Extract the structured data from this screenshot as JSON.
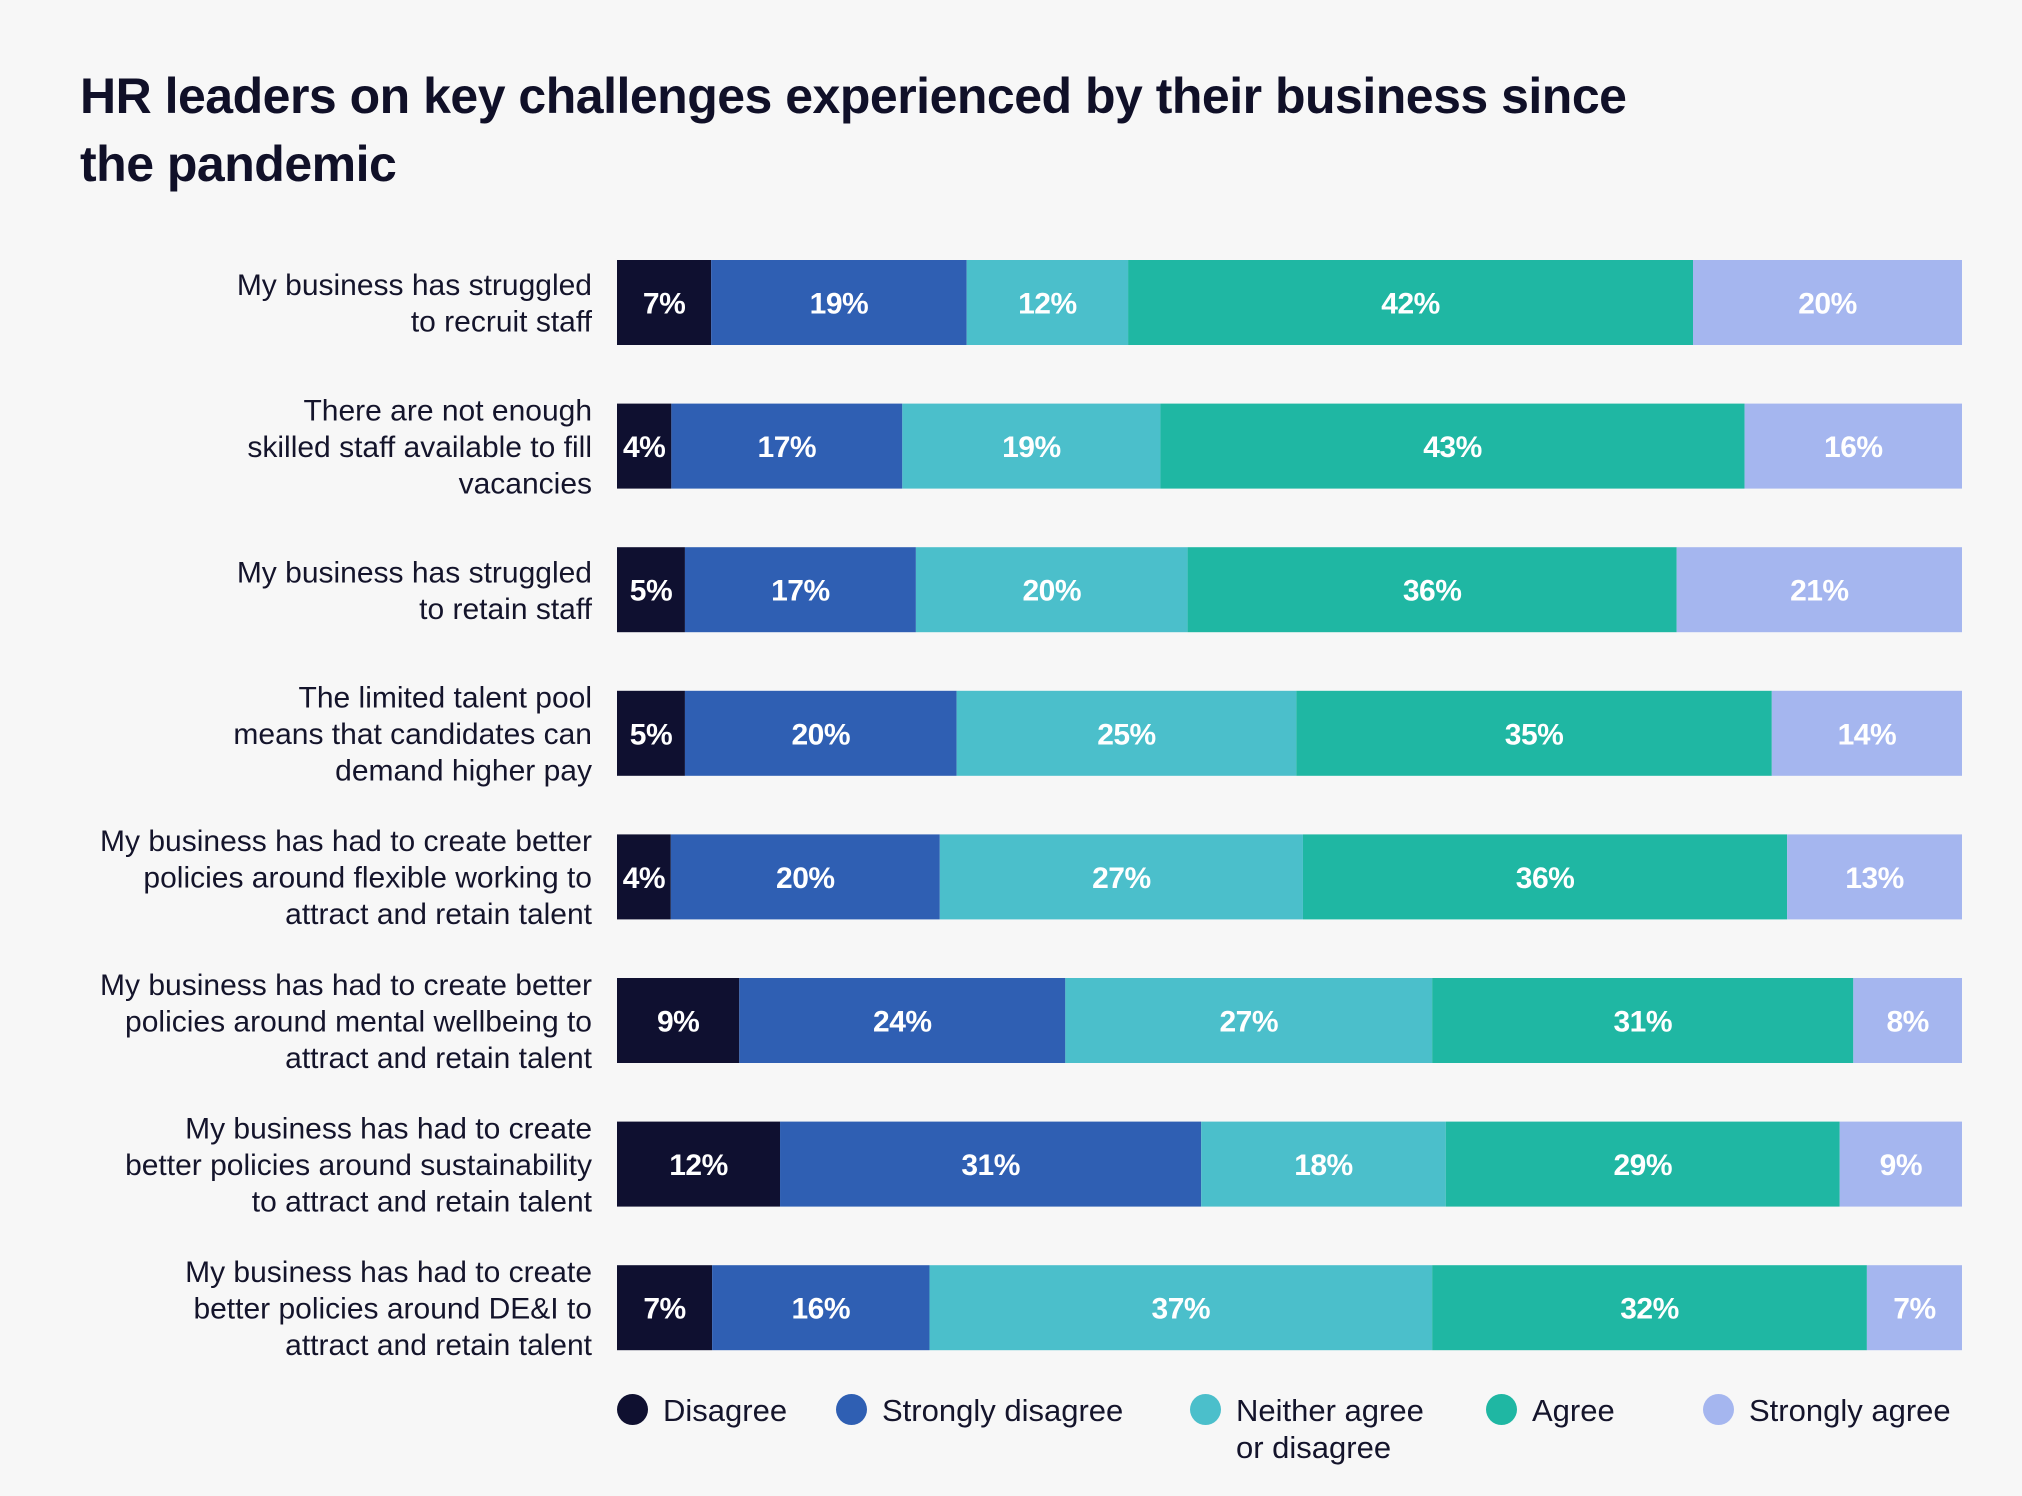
{
  "title": "HR leaders on key challenges experienced by their business since the pandemic",
  "chart_data": {
    "type": "bar",
    "orientation": "horizontal",
    "stacked": true,
    "title": "HR leaders on key challenges experienced by their business since the pandemic",
    "categories": [
      "My business has struggled to recruit staff",
      "There are not enough skilled staff available to fill vacancies",
      "My business has struggled to retain staff",
      "The limited talent pool means that candidates can demand higher pay",
      "My business has had to create better policies around flexible working to attract and retain talent",
      "My business has had to create better policies around mental wellbeing to attract and retain talent",
      "My business has had to create better policies around sustainability to attract and retain talent",
      "My business has had to create better policies around DE&I to attract and retain talent"
    ],
    "category_lines": [
      [
        "My business has struggled",
        "to recruit staff"
      ],
      [
        "There are not enough",
        "skilled staff available to fill",
        "vacancies"
      ],
      [
        "My business has struggled",
        "to retain staff"
      ],
      [
        "The limited talent pool",
        "means that candidates can",
        "demand higher pay"
      ],
      [
        "My business has had to create better",
        "policies around flexible working to",
        "attract and retain talent"
      ],
      [
        "My business has had to create better",
        "policies around mental wellbeing to",
        "attract and retain talent"
      ],
      [
        "My business has had to create",
        "better policies around sustainability",
        "to attract and retain talent"
      ],
      [
        "My business has had to create",
        "better policies around DE&I to",
        "attract and retain talent"
      ]
    ],
    "series": [
      {
        "name": "Disagree",
        "color": "#0f1030",
        "values": [
          7,
          4,
          5,
          5,
          4,
          9,
          12,
          7
        ]
      },
      {
        "name": "Strongly disagree",
        "color": "#2f5fb3",
        "values": [
          19,
          17,
          17,
          20,
          20,
          24,
          31,
          16
        ]
      },
      {
        "name": "Neither agree or disagree",
        "color": "#4bbfcb",
        "values": [
          12,
          19,
          20,
          25,
          27,
          27,
          18,
          37
        ]
      },
      {
        "name": "Agree",
        "color": "#1fb7a3",
        "values": [
          42,
          43,
          36,
          35,
          36,
          31,
          29,
          32
        ]
      },
      {
        "name": "Strongly agree",
        "color": "#a5b6ef",
        "values": [
          20,
          16,
          21,
          14,
          13,
          8,
          9,
          7
        ]
      }
    ],
    "value_suffix": "%",
    "legend": "bottom"
  },
  "legend": [
    {
      "label": "Disagree",
      "color": "#0f1030"
    },
    {
      "label": "Strongly disagree",
      "color": "#2f5fb3"
    },
    {
      "label": "Neither agree\nor disagree",
      "color": "#4bbfcb"
    },
    {
      "label": "Agree",
      "color": "#1fb7a3"
    },
    {
      "label": "Strongly agree",
      "color": "#a5b6ef"
    }
  ]
}
